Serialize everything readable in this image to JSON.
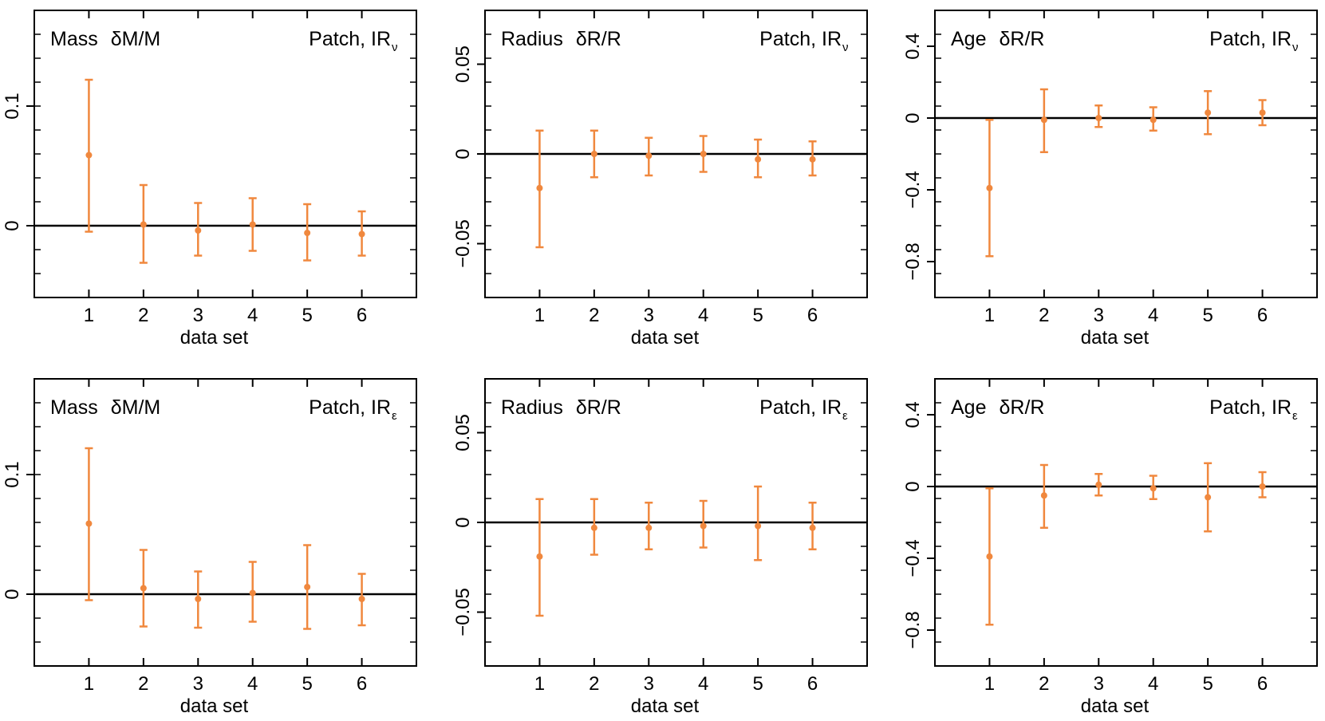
{
  "colors": {
    "marker": "#f0883e",
    "axis": "#000000",
    "background": "#ffffff"
  },
  "chart_data": [
    {
      "type": "scatter",
      "quantity": "Mass",
      "symbol": "δM/M",
      "method": "Patch, IR",
      "method_sub": "ν",
      "xlabel": "data set",
      "x": [
        1,
        2,
        3,
        4,
        5,
        6
      ],
      "y": [
        0.059,
        0.001,
        -0.004,
        0.001,
        -0.006,
        -0.007
      ],
      "y_low": [
        -0.005,
        -0.031,
        -0.025,
        -0.021,
        -0.029,
        -0.025
      ],
      "y_high": [
        0.122,
        0.034,
        0.019,
        0.023,
        0.018,
        0.012
      ],
      "xlim": [
        0,
        7
      ],
      "ylim": [
        -0.06,
        0.18
      ],
      "xticks": [
        1,
        2,
        3,
        4,
        5,
        6
      ],
      "xtick_labels": [
        "1",
        "2",
        "3",
        "4",
        "5",
        "6"
      ],
      "yticks": [
        0,
        0.1
      ],
      "ytick_labels": [
        "0",
        "0.1"
      ],
      "reference_line": 0
    },
    {
      "type": "scatter",
      "quantity": "Radius",
      "symbol": "δR/R",
      "method": "Patch, IR",
      "method_sub": "ν",
      "xlabel": "data set",
      "x": [
        1,
        2,
        3,
        4,
        5,
        6
      ],
      "y": [
        -0.019,
        0.0,
        -0.001,
        0.0,
        -0.003,
        -0.003
      ],
      "y_low": [
        -0.052,
        -0.013,
        -0.012,
        -0.01,
        -0.013,
        -0.012
      ],
      "y_high": [
        0.013,
        0.013,
        0.009,
        0.01,
        0.008,
        0.007
      ],
      "xlim": [
        0,
        7
      ],
      "ylim": [
        -0.08,
        0.08
      ],
      "xticks": [
        1,
        2,
        3,
        4,
        5,
        6
      ],
      "xtick_labels": [
        "1",
        "2",
        "3",
        "4",
        "5",
        "6"
      ],
      "yticks": [
        -0.05,
        0,
        0.05
      ],
      "ytick_labels": [
        "−0.05",
        "0",
        "0.05"
      ],
      "reference_line": 0
    },
    {
      "type": "scatter",
      "quantity": "Age",
      "symbol": "δR/R",
      "method": "Patch, IR",
      "method_sub": "ν",
      "xlabel": "data set",
      "x": [
        1,
        2,
        3,
        4,
        5,
        6
      ],
      "y": [
        -0.39,
        -0.01,
        0.0,
        -0.01,
        0.03,
        0.03
      ],
      "y_low": [
        -0.77,
        -0.19,
        -0.05,
        -0.07,
        -0.09,
        -0.04
      ],
      "y_high": [
        -0.01,
        0.16,
        0.07,
        0.06,
        0.15,
        0.1
      ],
      "xlim": [
        0,
        7
      ],
      "ylim": [
        -1.0,
        0.6
      ],
      "xticks": [
        1,
        2,
        3,
        4,
        5,
        6
      ],
      "xtick_labels": [
        "1",
        "2",
        "3",
        "4",
        "5",
        "6"
      ],
      "yticks": [
        -0.8,
        -0.4,
        0,
        0.4
      ],
      "ytick_labels": [
        "−0.8",
        "−0.4",
        "0",
        "0.4"
      ],
      "reference_line": 0
    },
    {
      "type": "scatter",
      "quantity": "Mass",
      "symbol": "δM/M",
      "method": "Patch, IR",
      "method_sub": "ε",
      "xlabel": "data set",
      "x": [
        1,
        2,
        3,
        4,
        5,
        6
      ],
      "y": [
        0.059,
        0.005,
        -0.004,
        0.001,
        0.006,
        -0.004
      ],
      "y_low": [
        -0.005,
        -0.027,
        -0.028,
        -0.023,
        -0.029,
        -0.026
      ],
      "y_high": [
        0.122,
        0.037,
        0.019,
        0.027,
        0.041,
        0.017
      ],
      "xlim": [
        0,
        7
      ],
      "ylim": [
        -0.06,
        0.18
      ],
      "xticks": [
        1,
        2,
        3,
        4,
        5,
        6
      ],
      "xtick_labels": [
        "1",
        "2",
        "3",
        "4",
        "5",
        "6"
      ],
      "yticks": [
        0,
        0.1
      ],
      "ytick_labels": [
        "0",
        "0.1"
      ],
      "reference_line": 0
    },
    {
      "type": "scatter",
      "quantity": "Radius",
      "symbol": "δR/R",
      "method": "Patch, IR",
      "method_sub": "ε",
      "xlabel": "data set",
      "x": [
        1,
        2,
        3,
        4,
        5,
        6
      ],
      "y": [
        -0.019,
        -0.003,
        -0.003,
        -0.002,
        -0.002,
        -0.003
      ],
      "y_low": [
        -0.052,
        -0.018,
        -0.015,
        -0.014,
        -0.021,
        -0.015
      ],
      "y_high": [
        0.013,
        0.013,
        0.011,
        0.012,
        0.02,
        0.011
      ],
      "xlim": [
        0,
        7
      ],
      "ylim": [
        -0.08,
        0.08
      ],
      "xticks": [
        1,
        2,
        3,
        4,
        5,
        6
      ],
      "xtick_labels": [
        "1",
        "2",
        "3",
        "4",
        "5",
        "6"
      ],
      "yticks": [
        -0.05,
        0,
        0.05
      ],
      "ytick_labels": [
        "−0.05",
        "0",
        "0.05"
      ],
      "reference_line": 0
    },
    {
      "type": "scatter",
      "quantity": "Age",
      "symbol": "δR/R",
      "method": "Patch, IR",
      "method_sub": "ε",
      "xlabel": "data set",
      "x": [
        1,
        2,
        3,
        4,
        5,
        6
      ],
      "y": [
        -0.39,
        -0.05,
        0.01,
        -0.01,
        -0.06,
        0.0
      ],
      "y_low": [
        -0.77,
        -0.23,
        -0.05,
        -0.07,
        -0.25,
        -0.06
      ],
      "y_high": [
        -0.01,
        0.12,
        0.07,
        0.06,
        0.13,
        0.08
      ],
      "xlim": [
        0,
        7
      ],
      "ylim": [
        -1.0,
        0.6
      ],
      "xticks": [
        1,
        2,
        3,
        4,
        5,
        6
      ],
      "xtick_labels": [
        "1",
        "2",
        "3",
        "4",
        "5",
        "6"
      ],
      "yticks": [
        -0.8,
        -0.4,
        0,
        0.4
      ],
      "ytick_labels": [
        "−0.8",
        "−0.4",
        "0",
        "0.4"
      ],
      "reference_line": 0
    }
  ]
}
